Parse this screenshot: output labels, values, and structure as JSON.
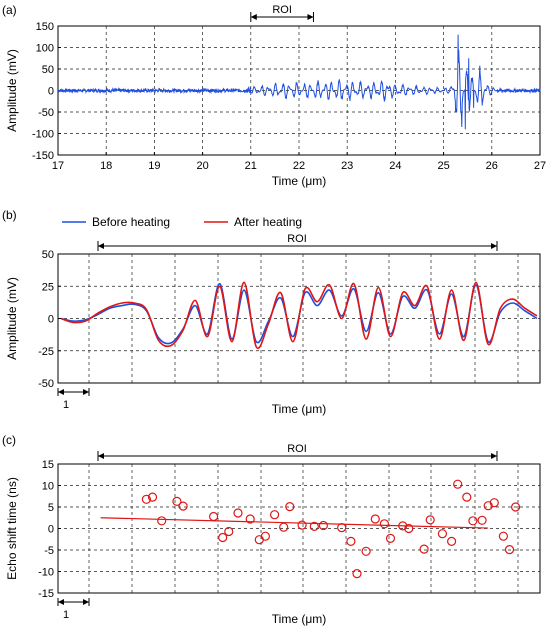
{
  "panels": {
    "a": {
      "label": "(a)"
    },
    "b": {
      "label": "(b)"
    },
    "c": {
      "label": "(c)"
    }
  },
  "colors": {
    "blue": "#1f4fe0",
    "red": "#e01616",
    "grid": "#222222"
  },
  "chart_data": [
    {
      "type": "line",
      "panel": "(a)",
      "xlabel": "Time (μm)",
      "ylabel": "Amplitude (mV)",
      "xlim": [
        17,
        27
      ],
      "ylim": [
        -150,
        150
      ],
      "xticks": [
        17,
        18,
        19,
        20,
        21,
        22,
        23,
        24,
        25,
        26,
        27
      ],
      "yticks": [
        150,
        100,
        50,
        0,
        -50,
        -100,
        -150
      ],
      "grid": true,
      "roi": {
        "label": "ROI",
        "x0": 21.0,
        "x1": 22.3
      },
      "series": [
        {
          "color": "#1f4fe0",
          "envelope": [
            [
              17,
              4
            ],
            [
              20.9,
              4
            ],
            [
              21.0,
              10
            ],
            [
              21.2,
              14
            ],
            [
              21.5,
              22
            ],
            [
              21.8,
              26
            ],
            [
              22.0,
              22
            ],
            [
              22.3,
              26
            ],
            [
              22.6,
              30
            ],
            [
              22.9,
              32
            ],
            [
              23.2,
              26
            ],
            [
              23.6,
              25
            ],
            [
              23.8,
              34
            ],
            [
              24.0,
              22
            ],
            [
              24.4,
              14
            ],
            [
              24.8,
              10
            ],
            [
              25.0,
              8
            ],
            [
              25.15,
              12
            ],
            [
              25.3,
              130
            ],
            [
              25.45,
              90
            ],
            [
              25.6,
              55
            ],
            [
              25.75,
              60
            ],
            [
              25.85,
              35
            ],
            [
              26.0,
              10
            ],
            [
              26.2,
              4
            ],
            [
              27,
              4
            ]
          ],
          "peaks": [
            [
              25.3,
              130
            ],
            [
              25.38,
              -85
            ],
            [
              25.45,
              -90
            ],
            [
              25.52,
              75
            ],
            [
              25.62,
              -40
            ],
            [
              25.75,
              58
            ],
            [
              25.8,
              -35
            ]
          ]
        }
      ]
    },
    {
      "type": "line",
      "panel": "(b)",
      "xlabel": "Time (μm)",
      "ylabel": "Amplitude (mV)",
      "ylim": [
        -50,
        50
      ],
      "yticks": [
        50,
        25,
        0,
        -25,
        -50
      ],
      "grid": true,
      "legend": "top-left",
      "roi": {
        "label": "ROI",
        "x0": 1.0,
        "x1": 14.2
      },
      "scale_bar": {
        "label": "1",
        "x0": 0,
        "x1": 1
      },
      "series": [
        {
          "name": "Before heating",
          "color": "#1f4fe0",
          "x": [
            0,
            0.4,
            0.8,
            1.2,
            1.6,
            2.0,
            2.4,
            2.8,
            3.2,
            3.6,
            4.0,
            4.4,
            4.8,
            5.2,
            5.6,
            6.0,
            6.4,
            6.8,
            7.2,
            7.6,
            8.0,
            8.4,
            8.8,
            9.2,
            9.6,
            10.0,
            10.4,
            10.8,
            11.2,
            11.6,
            12.0,
            12.4,
            12.8,
            13.2,
            13.6,
            14.0,
            14.4,
            14.8,
            15.2,
            15.6
          ],
          "y": [
            0,
            -2,
            -1,
            3,
            8,
            10,
            11,
            6,
            -15,
            -19,
            -8,
            10,
            -12,
            27,
            -16,
            22,
            -18,
            -2,
            16,
            -14,
            20,
            10,
            22,
            2,
            23,
            -10,
            20,
            -12,
            17,
            8,
            22,
            -12,
            19,
            -14,
            26,
            -18,
            5,
            12,
            6,
            0
          ]
        },
        {
          "name": "After heating",
          "color": "#e01616",
          "x": [
            0,
            0.4,
            0.8,
            1.2,
            1.6,
            2.0,
            2.4,
            2.8,
            3.2,
            3.6,
            4.0,
            4.4,
            4.8,
            5.2,
            5.6,
            6.0,
            6.4,
            6.8,
            7.2,
            7.6,
            8.0,
            8.4,
            8.8,
            9.2,
            9.6,
            10.0,
            10.4,
            10.8,
            11.2,
            11.6,
            12.0,
            12.4,
            12.8,
            13.2,
            13.6,
            14.0,
            14.4,
            14.8,
            15.2,
            15.6
          ],
          "y": [
            0,
            -3,
            -2,
            4,
            9,
            12,
            12,
            7,
            -17,
            -21,
            -9,
            14,
            -14,
            25,
            -18,
            28,
            -22,
            -4,
            20,
            -18,
            23,
            13,
            26,
            0,
            27,
            -16,
            24,
            -14,
            20,
            10,
            25,
            -16,
            22,
            -17,
            28,
            -20,
            8,
            15,
            8,
            2
          ]
        }
      ]
    },
    {
      "type": "scatter",
      "panel": "(c)",
      "xlabel": "Time (μm)",
      "ylabel": "Echo shift time (ns)",
      "ylim": [
        -15,
        15
      ],
      "yticks": [
        15,
        10,
        5,
        0,
        -5,
        -10,
        -15
      ],
      "grid": true,
      "roi": {
        "label": "ROI",
        "x0": 1.0,
        "x1": 14.2
      },
      "scale_bar": {
        "label": "1",
        "x0": 0,
        "x1": 1
      },
      "fit": {
        "color": "#e01616",
        "x": [
          1.3,
          14.0
        ],
        "y": [
          2.5,
          0.1
        ]
      },
      "series": [
        {
          "color": "#e01616",
          "x": [
            2.8,
            3.0,
            3.3,
            3.8,
            4.0,
            5.0,
            5.3,
            5.5,
            5.8,
            6.2,
            6.5,
            6.7,
            7.0,
            7.3,
            7.5,
            7.9,
            8.3,
            8.6,
            9.2,
            9.5,
            9.7,
            10.0,
            10.3,
            10.6,
            10.8,
            11.2,
            11.4,
            11.9,
            12.1,
            12.5,
            12.8,
            13.0,
            13.3,
            13.5,
            13.8,
            14.0,
            14.2,
            14.5,
            14.7,
            14.9
          ],
          "y": [
            6.8,
            7.3,
            1.8,
            6.3,
            5.2,
            2.8,
            -2.1,
            -0.7,
            3.6,
            2.2,
            -2.6,
            -1.8,
            3.2,
            0.3,
            5.1,
            0.8,
            0.5,
            0.7,
            0.2,
            -3.0,
            -10.5,
            -5.3,
            2.2,
            1.1,
            -2.3,
            0.6,
            0.0,
            -4.8,
            2.0,
            -1.2,
            -3.0,
            10.3,
            7.3,
            1.8,
            1.9,
            5.3,
            6.0,
            -1.8,
            -4.9,
            5.0
          ]
        }
      ]
    }
  ]
}
